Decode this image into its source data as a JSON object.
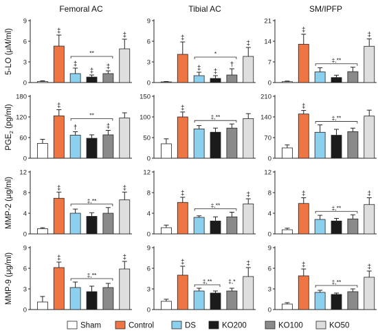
{
  "figure": {
    "columns": [
      "Femoral AC",
      "Tibial AC",
      "SM/IPFP"
    ],
    "rows": [
      {
        "label": "5-LO (μM/ml)",
        "sub": ""
      },
      {
        "label": "PGE",
        "sub": "2",
        "suffix": " (pg/ml)"
      },
      {
        "label": "MMP-2 (μg/ml)",
        "sub": ""
      },
      {
        "label": "MMP-9 (μg/ml)",
        "sub": ""
      }
    ],
    "group_colors": {
      "Sham": "#ffffff",
      "Control": "#ef7643",
      "DS": "#8dd0ee",
      "KO200": "#1b1b1b",
      "KO100": "#8a8a8a",
      "KO50": "#dedede"
    },
    "legend": [
      "Sham",
      "Control",
      "DS",
      "KO200",
      "KO100",
      "KO50"
    ]
  },
  "chart_data": [
    {
      "type": "bar",
      "column": "Femoral AC",
      "ylabel": "5-LO (μM/ml)",
      "categories": [
        "Sham",
        "Control",
        "DS",
        "KO200",
        "KO100",
        "KO50"
      ],
      "values": [
        0.15,
        5.3,
        1.3,
        0.8,
        1.3,
        4.9
      ],
      "errors": [
        0.1,
        1.6,
        0.8,
        0.3,
        0.4,
        1.4
      ],
      "ylim": [
        0,
        9
      ],
      "yticks": [
        0,
        3,
        6,
        9
      ],
      "marks": [
        "",
        "‡",
        "‡",
        "‡",
        "‡",
        "‡"
      ],
      "bracket": {
        "from": 2,
        "to": 4,
        "label": "**"
      }
    },
    {
      "type": "bar",
      "column": "Tibial AC",
      "ylabel": "5-LO (μM/ml)",
      "categories": [
        "Sham",
        "Control",
        "DS",
        "KO200",
        "KO100",
        "KO50"
      ],
      "values": [
        0.1,
        4.1,
        1.0,
        0.6,
        1.1,
        3.8
      ],
      "errors": [
        0.05,
        1.8,
        0.5,
        0.4,
        0.9,
        1.3
      ],
      "ylim": [
        0,
        9
      ],
      "yticks": [
        0,
        3,
        6,
        9
      ],
      "marks": [
        "",
        "‡",
        "‡",
        "‡",
        "†",
        "‡"
      ],
      "bracket": {
        "from": 2,
        "to": 4,
        "label": "*"
      }
    },
    {
      "type": "bar",
      "column": "SM/IPFP",
      "ylabel": "5-LO (μM/ml)",
      "categories": [
        "Sham",
        "Control",
        "DS",
        "KO200",
        "KO100",
        "KO50"
      ],
      "values": [
        0.3,
        13.0,
        3.6,
        1.7,
        3.7,
        12.3
      ],
      "errors": [
        0.2,
        3.4,
        1.4,
        0.8,
        1.5,
        2.5
      ],
      "ylim": [
        0,
        21
      ],
      "yticks": [
        0,
        7,
        14,
        21
      ],
      "marks": [
        "",
        "‡",
        "",
        "",
        "",
        "‡"
      ],
      "bracket": {
        "from": 2,
        "to": 4,
        "label": "‡,**"
      }
    },
    {
      "type": "bar",
      "column": "Femoral AC",
      "ylabel": "PGE2 (pg/ml)",
      "categories": [
        "Sham",
        "Control",
        "DS",
        "KO200",
        "KO100",
        "KO50"
      ],
      "values": [
        43,
        123,
        67,
        58,
        68,
        117
      ],
      "errors": [
        12,
        18,
        10,
        10,
        13,
        15
      ],
      "ylim": [
        0,
        180
      ],
      "yticks": [
        0,
        60,
        120,
        180
      ],
      "marks": [
        "",
        "‡",
        "†",
        "",
        "‡",
        ""
      ],
      "bracket": {
        "from": 2,
        "to": 4,
        "label": "**"
      }
    },
    {
      "type": "bar",
      "column": "Tibial AC",
      "ylabel": "PGE2 (pg/ml)",
      "categories": [
        "Sham",
        "Control",
        "DS",
        "KO200",
        "KO100",
        "KO50"
      ],
      "values": [
        35,
        100,
        71,
        63,
        73,
        96
      ],
      "errors": [
        12,
        12,
        8,
        10,
        10,
        12
      ],
      "ylim": [
        0,
        150
      ],
      "yticks": [
        0,
        50,
        100,
        150
      ],
      "marks": [
        "",
        "‡",
        "",
        "",
        "",
        ""
      ],
      "bracket": {
        "from": 2,
        "to": 4,
        "label": "‡,**"
      }
    },
    {
      "type": "bar",
      "column": "SM/IPFP",
      "ylabel": "PGE2 (pg/ml)",
      "categories": [
        "Sham",
        "Control",
        "DS",
        "KO200",
        "KO100",
        "KO50"
      ],
      "values": [
        35,
        150,
        88,
        78,
        90,
        143
      ],
      "errors": [
        10,
        12,
        25,
        20,
        12,
        20
      ],
      "ylim": [
        0,
        210
      ],
      "yticks": [
        0,
        70,
        140,
        210
      ],
      "marks": [
        "",
        "‡",
        "",
        "",
        "",
        ""
      ],
      "bracket": {
        "from": 2,
        "to": 4,
        "label": "‡,**"
      }
    },
    {
      "type": "bar",
      "column": "Femoral AC",
      "ylabel": "MMP-2 (μg/ml)",
      "categories": [
        "Sham",
        "Control",
        "DS",
        "KO200",
        "KO100",
        "KO50"
      ],
      "values": [
        1.0,
        6.9,
        4.0,
        3.4,
        4.0,
        6.6
      ],
      "errors": [
        0.2,
        1.2,
        0.8,
        0.7,
        1.1,
        1.5
      ],
      "ylim": [
        0,
        12
      ],
      "yticks": [
        0,
        4,
        8,
        12
      ],
      "marks": [
        "",
        "‡",
        "",
        "",
        "",
        "‡"
      ],
      "bracket": {
        "from": 2,
        "to": 4,
        "label": "‡,**"
      }
    },
    {
      "type": "bar",
      "column": "Tibial AC",
      "ylabel": "MMP-2 (μg/ml)",
      "categories": [
        "Sham",
        "Control",
        "DS",
        "KO200",
        "KO100",
        "KO50"
      ],
      "values": [
        1.2,
        6.1,
        3.2,
        2.5,
        3.3,
        5.8
      ],
      "errors": [
        0.5,
        1.0,
        0.3,
        0.8,
        0.9,
        1.0
      ],
      "ylim": [
        0,
        12
      ],
      "yticks": [
        0,
        4,
        8,
        12
      ],
      "marks": [
        "",
        "‡",
        "",
        "",
        "",
        "‡"
      ],
      "bracket": {
        "from": 2,
        "to": 4,
        "label": "‡,**"
      }
    },
    {
      "type": "bar",
      "column": "SM/IPFP",
      "ylabel": "MMP-2 (μg/ml)",
      "categories": [
        "Sham",
        "Control",
        "DS",
        "KO200",
        "KO100",
        "KO50"
      ],
      "values": [
        0.8,
        5.9,
        2.8,
        2.5,
        2.9,
        5.7
      ],
      "errors": [
        0.3,
        1.1,
        0.8,
        0.5,
        0.8,
        1.3
      ],
      "ylim": [
        0,
        12
      ],
      "yticks": [
        0,
        4,
        8,
        12
      ],
      "marks": [
        "",
        "‡",
        "",
        "",
        "",
        "‡"
      ],
      "bracket": {
        "from": 2,
        "to": 4,
        "label": "‡,**"
      }
    },
    {
      "type": "bar",
      "column": "Femoral AC",
      "ylabel": "MMP-9 (μg/ml)",
      "categories": [
        "Sham",
        "Control",
        "DS",
        "KO200",
        "KO100",
        "KO50"
      ],
      "values": [
        1.1,
        6.1,
        3.2,
        2.6,
        3.2,
        5.9
      ],
      "errors": [
        0.8,
        0.8,
        0.8,
        0.8,
        0.6,
        1.1
      ],
      "ylim": [
        0,
        9
      ],
      "yticks": [
        0,
        3,
        6,
        9
      ],
      "marks": [
        "",
        "‡",
        "",
        "",
        "",
        "‡"
      ],
      "bracket": {
        "from": 2,
        "to": 4,
        "label": "‡,**"
      }
    },
    {
      "type": "bar",
      "column": "Tibial AC",
      "ylabel": "MMP-9 (μg/ml)",
      "categories": [
        "Sham",
        "Control",
        "DS",
        "KO200",
        "KO100",
        "KO50"
      ],
      "values": [
        1.2,
        5.0,
        2.7,
        2.4,
        2.7,
        4.8
      ],
      "errors": [
        0.3,
        1.3,
        0.4,
        0.3,
        0.4,
        1.3
      ],
      "ylim": [
        0,
        9
      ],
      "yticks": [
        0,
        3,
        6,
        9
      ],
      "marks": [
        "",
        "‡",
        "",
        "",
        "",
        "‡"
      ],
      "brackets": [
        {
          "from": 2,
          "to": 3,
          "label": "‡,**"
        },
        {
          "from": 4,
          "to": 4,
          "label": "‡,*"
        }
      ]
    },
    {
      "type": "bar",
      "column": "SM/IPFP",
      "ylabel": "MMP-9 (μg/ml)",
      "categories": [
        "Sham",
        "Control",
        "DS",
        "KO200",
        "KO100",
        "KO50"
      ],
      "values": [
        0.8,
        4.9,
        2.5,
        2.2,
        2.6,
        4.7
      ],
      "errors": [
        0.2,
        1.0,
        0.3,
        0.2,
        0.4,
        0.9
      ],
      "ylim": [
        0,
        9
      ],
      "yticks": [
        0,
        3,
        6,
        9
      ],
      "marks": [
        "",
        "‡",
        "",
        "",
        "",
        "‡"
      ],
      "bracket": {
        "from": 2,
        "to": 4,
        "label": "‡,**"
      }
    }
  ]
}
